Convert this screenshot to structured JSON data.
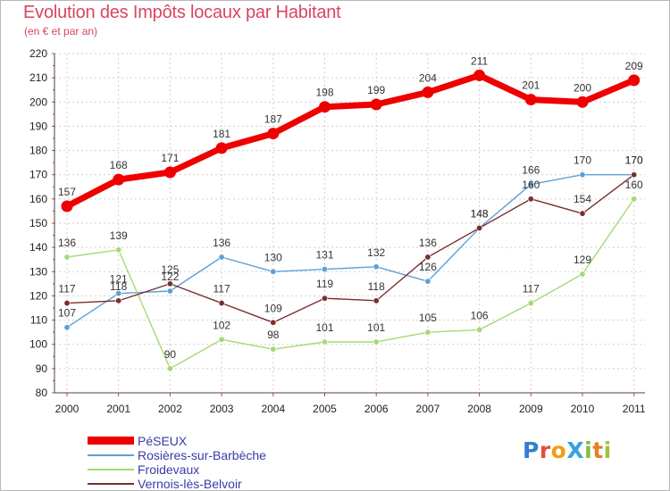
{
  "title": "Evolution des Impôts locaux par Habitant",
  "subtitle": "(en € et par an)",
  "logo": {
    "text": "ProXiti",
    "letters": [
      {
        "ch": "P",
        "color": "#2f7fd0"
      },
      {
        "ch": "r",
        "color": "#e74c3c"
      },
      {
        "ch": "o",
        "color": "#f39c12"
      },
      {
        "ch": "X",
        "color": "#3aa0dd"
      },
      {
        "ch": "i",
        "color": "#7fbf3f"
      },
      {
        "ch": "t",
        "color": "#e67e22"
      },
      {
        "ch": "i",
        "color": "#9bc53d"
      }
    ]
  },
  "chart_data": {
    "type": "line",
    "title": "Evolution des Impôts locaux par Habitant",
    "subtitle": "(en € et par an)",
    "xlabel": "",
    "ylabel": "",
    "x": [
      "2000",
      "2001",
      "2002",
      "2003",
      "2004",
      "2005",
      "2006",
      "2007",
      "2008",
      "2009",
      "2010",
      "2011"
    ],
    "ylim": [
      80,
      220
    ],
    "yticks": [
      80,
      90,
      100,
      110,
      120,
      130,
      140,
      150,
      160,
      170,
      180,
      190,
      200,
      210,
      220
    ],
    "grid": true,
    "legend_position": "bottom-left",
    "series": [
      {
        "name": "PéSEUX",
        "color": "#ee0000",
        "emphasis": true,
        "values": [
          157,
          168,
          171,
          181,
          187,
          198,
          199,
          204,
          211,
          201,
          200,
          209
        ]
      },
      {
        "name": "Rosières-sur-Barbèche",
        "color": "#5f9fd3",
        "values": [
          107,
          121,
          122,
          136,
          130,
          131,
          132,
          126,
          148,
          166,
          170,
          170
        ]
      },
      {
        "name": "Froidevaux",
        "color": "#a3da75",
        "values": [
          136,
          139,
          90,
          102,
          98,
          101,
          101,
          105,
          106,
          117,
          129,
          160
        ]
      },
      {
        "name": "Vernois-lès-Belvoir",
        "color": "#7a2e2e",
        "values": [
          117,
          118,
          125,
          117,
          109,
          119,
          118,
          136,
          148,
          160,
          154,
          170
        ]
      }
    ],
    "data_labels": [
      {
        "series": 0,
        "index": 0,
        "text": "157"
      },
      {
        "series": 0,
        "index": 1,
        "text": "168"
      },
      {
        "series": 0,
        "index": 2,
        "text": "171"
      },
      {
        "series": 0,
        "index": 3,
        "text": "181"
      },
      {
        "series": 0,
        "index": 4,
        "text": "187"
      },
      {
        "series": 0,
        "index": 5,
        "text": "198"
      },
      {
        "series": 0,
        "index": 6,
        "text": "199"
      },
      {
        "series": 0,
        "index": 7,
        "text": "204"
      },
      {
        "series": 0,
        "index": 8,
        "text": "211"
      },
      {
        "series": 0,
        "index": 9,
        "text": "201"
      },
      {
        "series": 0,
        "index": 10,
        "text": "200"
      },
      {
        "series": 0,
        "index": 11,
        "text": "209"
      },
      {
        "series": 1,
        "index": 0,
        "text": "107"
      },
      {
        "series": 1,
        "index": 1,
        "text": "121"
      },
      {
        "series": 1,
        "index": 2,
        "text": "122"
      },
      {
        "series": 1,
        "index": 3,
        "text": "136"
      },
      {
        "series": 1,
        "index": 4,
        "text": "130"
      },
      {
        "series": 1,
        "index": 5,
        "text": "131"
      },
      {
        "series": 1,
        "index": 6,
        "text": "132"
      },
      {
        "series": 1,
        "index": 7,
        "text": "126"
      },
      {
        "series": 1,
        "index": 8,
        "text": "148"
      },
      {
        "series": 1,
        "index": 9,
        "text": "166"
      },
      {
        "series": 1,
        "index": 10,
        "text": "170"
      },
      {
        "series": 1,
        "index": 11,
        "text": "170"
      },
      {
        "series": 2,
        "index": 0,
        "text": "136"
      },
      {
        "series": 2,
        "index": 1,
        "text": "139"
      },
      {
        "series": 2,
        "index": 2,
        "text": "90"
      },
      {
        "series": 2,
        "index": 3,
        "text": "102"
      },
      {
        "series": 2,
        "index": 4,
        "text": "98"
      },
      {
        "series": 2,
        "index": 5,
        "text": "101"
      },
      {
        "series": 2,
        "index": 6,
        "text": "101"
      },
      {
        "series": 2,
        "index": 7,
        "text": "105"
      },
      {
        "series": 2,
        "index": 8,
        "text": "106"
      },
      {
        "series": 2,
        "index": 9,
        "text": "117"
      },
      {
        "series": 2,
        "index": 10,
        "text": "129"
      },
      {
        "series": 2,
        "index": 11,
        "text": "160"
      },
      {
        "series": 3,
        "index": 0,
        "text": "117"
      },
      {
        "series": 3,
        "index": 1,
        "text": "118"
      },
      {
        "series": 3,
        "index": 2,
        "text": "125"
      },
      {
        "series": 3,
        "index": 3,
        "text": "117"
      },
      {
        "series": 3,
        "index": 4,
        "text": "109"
      },
      {
        "series": 3,
        "index": 5,
        "text": "119"
      },
      {
        "series": 3,
        "index": 6,
        "text": "118"
      },
      {
        "series": 3,
        "index": 7,
        "text": "136"
      },
      {
        "series": 3,
        "index": 8,
        "text": "148"
      },
      {
        "series": 3,
        "index": 9,
        "text": "160"
      },
      {
        "series": 3,
        "index": 10,
        "text": "154"
      },
      {
        "series": 3,
        "index": 11,
        "text": "170"
      }
    ]
  }
}
